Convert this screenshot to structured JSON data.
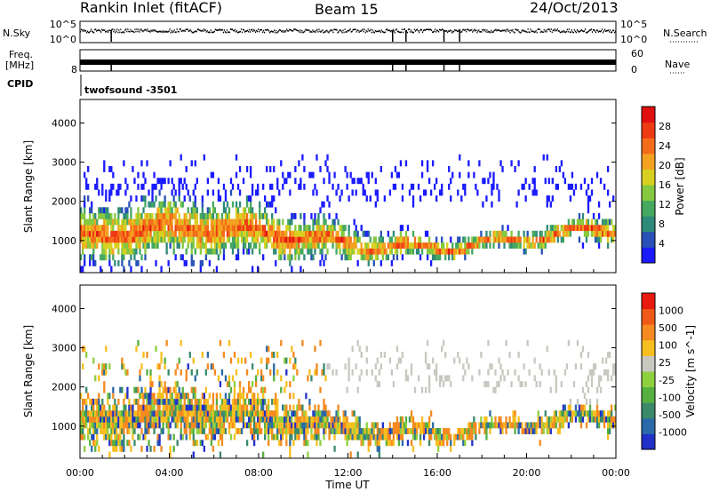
{
  "header": {
    "station": "Rankin Inlet (fitACF)",
    "beam": "Beam 15",
    "date": "24/Oct/2013"
  },
  "strip_labels": {
    "nsky": "N.Sky",
    "nsky_ticks": [
      "10^5",
      "10^0"
    ],
    "nsearch": "N.Search",
    "nsearch_ticks": [
      "10^5",
      "10^0"
    ],
    "freq_line1": "Freq.",
    "freq_line2": "[MHz]",
    "freq_ticks": [
      "8"
    ],
    "nave": "Nave",
    "nave_ticks": [
      "60",
      "0"
    ],
    "cpid": "CPID",
    "cpid_value": "twofsound -3501"
  },
  "chart_data": [
    {
      "type": "heatmap",
      "name": "power",
      "ylabel": "Slant Range [km]",
      "x_ticks": [
        "00:00",
        "04:00",
        "08:00",
        "12:00",
        "16:00",
        "20:00",
        "00:00"
      ],
      "x_range_hours": [
        0,
        24
      ],
      "y_ticks": [
        1000,
        2000,
        3000,
        4000
      ],
      "ylim": [
        180,
        4600
      ],
      "colorbar": {
        "label": "Power [dB]",
        "ticks": [
          "4",
          "8",
          "12",
          "16",
          "20",
          "24",
          "28"
        ],
        "colors": [
          "#1a1aff",
          "#2850b8",
          "#2f8a7a",
          "#45a860",
          "#86c83f",
          "#d8d021",
          "#f4a020",
          "#f46c1a",
          "#ee3a12",
          "#e01010"
        ]
      }
    },
    {
      "type": "heatmap",
      "name": "velocity",
      "ylabel": "Slant Range [km]",
      "xlabel": "Time UT",
      "x_ticks": [
        "00:00",
        "04:00",
        "08:00",
        "12:00",
        "16:00",
        "20:00",
        "00:00"
      ],
      "x_range_hours": [
        0,
        24
      ],
      "y_ticks": [
        1000,
        2000,
        3000,
        4000
      ],
      "ylim": [
        180,
        4600
      ],
      "colorbar": {
        "label": "Velocity [m s^-1]",
        "ticks": [
          "1000",
          "500",
          "100",
          "25",
          "-25",
          "-100",
          "-500",
          "-1000"
        ],
        "colors": [
          "#2030c8",
          "#2a6aa8",
          "#3a8a6a",
          "#55b040",
          "#8fd040",
          "#c8c8c0",
          "#f7c020",
          "#f48a20",
          "#f05a18",
          "#e81a10"
        ]
      }
    }
  ]
}
